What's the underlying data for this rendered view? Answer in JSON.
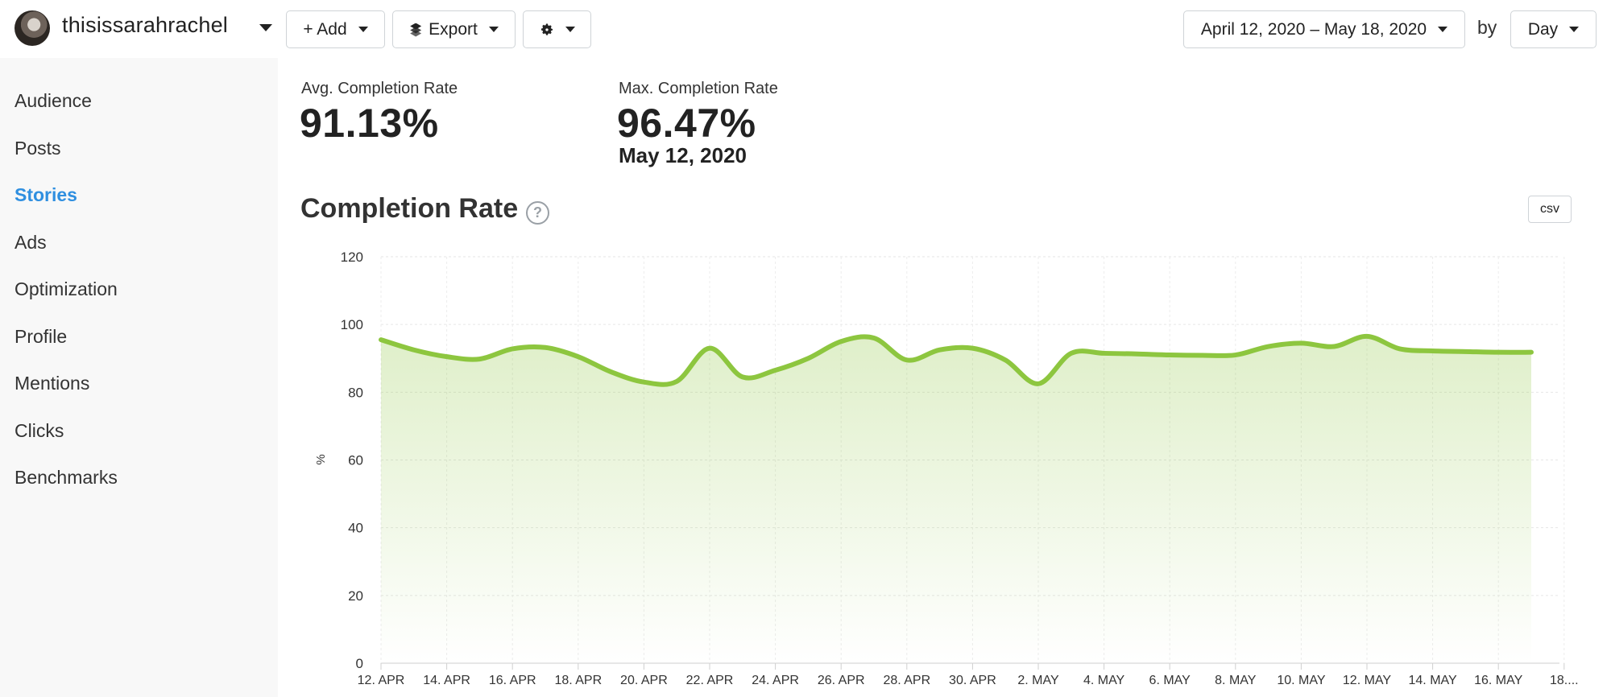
{
  "header": {
    "account_name": "thisissarahrachel",
    "add_label": "+ Add",
    "export_label": "Export",
    "date_range": "April 12, 2020 – May 18, 2020",
    "by_label": "by",
    "granularity": "Day"
  },
  "sidebar": {
    "items": [
      {
        "label": "Audience",
        "active": false
      },
      {
        "label": "Posts",
        "active": false
      },
      {
        "label": "Stories",
        "active": true
      },
      {
        "label": "Ads",
        "active": false
      },
      {
        "label": "Optimization",
        "active": false
      },
      {
        "label": "Profile",
        "active": false
      },
      {
        "label": "Mentions",
        "active": false
      },
      {
        "label": "Clicks",
        "active": false
      },
      {
        "label": "Benchmarks",
        "active": false
      }
    ]
  },
  "kpis": {
    "avg": {
      "label": "Avg. Completion Rate",
      "value": "91.13%"
    },
    "max": {
      "label": "Max. Completion Rate",
      "value": "96.47%",
      "date": "May 12, 2020"
    }
  },
  "section": {
    "title": "Completion Rate",
    "help": "?",
    "csv_label": "csv"
  },
  "colors": {
    "accent": "#2f8fe0",
    "line": "#8dc63f"
  },
  "chart_data": {
    "type": "area",
    "ylabel": "%",
    "ylim": [
      0,
      120
    ],
    "yticks": [
      0,
      20,
      40,
      60,
      80,
      100,
      120
    ],
    "x_tick_labels": [
      "12. APR",
      "14. APR",
      "16. APR",
      "18. APR",
      "20. APR",
      "22. APR",
      "24. APR",
      "26. APR",
      "28. APR",
      "30. APR",
      "2. MAY",
      "4. MAY",
      "6. MAY",
      "8. MAY",
      "10. MAY",
      "12. MAY",
      "14. MAY",
      "16. MAY",
      "18...."
    ],
    "x": [
      "Apr 12",
      "Apr 13",
      "Apr 14",
      "Apr 15",
      "Apr 16",
      "Apr 17",
      "Apr 18",
      "Apr 19",
      "Apr 20",
      "Apr 21",
      "Apr 22",
      "Apr 23",
      "Apr 24",
      "Apr 25",
      "Apr 26",
      "Apr 27",
      "Apr 28",
      "Apr 29",
      "Apr 30",
      "May 1",
      "May 2",
      "May 3",
      "May 4",
      "May 5",
      "May 6",
      "May 7",
      "May 8",
      "May 9",
      "May 10",
      "May 11",
      "May 12",
      "May 13",
      "May 14",
      "May 15",
      "May 16",
      "May 17"
    ],
    "values": [
      95.5,
      92.5,
      90.5,
      89.8,
      92.8,
      93.2,
      90.5,
      86.0,
      83.0,
      83.2,
      93.0,
      84.5,
      86.5,
      90.0,
      95.0,
      96.0,
      89.5,
      92.5,
      93.0,
      89.5,
      82.5,
      91.5,
      91.5,
      91.3,
      91.0,
      90.9,
      91.0,
      93.5,
      94.5,
      93.5,
      96.5,
      92.8,
      92.2,
      92.0,
      91.8,
      91.8
    ],
    "grid": true,
    "legend": "none"
  }
}
